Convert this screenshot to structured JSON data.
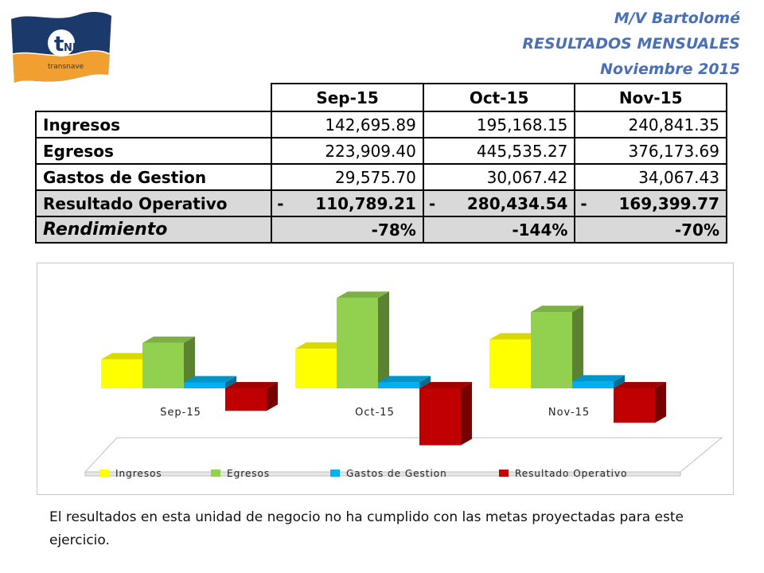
{
  "header": {
    "line1": "M/V Bartolomé",
    "line2": "RESULTADOS MENSUALES",
    "line3": "Noviembre 2015"
  },
  "logo": {
    "brand": "tne",
    "caption": "transnave",
    "colors": {
      "navy": "#1b3a6b",
      "orange": "#f0a030"
    }
  },
  "table": {
    "columns": [
      "Sep-15",
      "Oct-15",
      "Nov-15"
    ],
    "rows": [
      {
        "label": "Ingresos",
        "values": [
          "142,695.89",
          "195,168.15",
          "240,841.35"
        ]
      },
      {
        "label": "Egresos",
        "values": [
          "223,909.40",
          "445,535.27",
          "376,173.69"
        ]
      },
      {
        "label": "Gastos de Gestion",
        "values": [
          "29,575.70",
          "30,067.42",
          "34,067.43"
        ]
      },
      {
        "label": "Resultado Operativo",
        "sign": "-",
        "values": [
          "110,789.21",
          "280,434.54",
          "169,399.77"
        ]
      },
      {
        "label": "Rendimiento",
        "values": [
          "-78%",
          "-144%",
          "-70%"
        ]
      }
    ]
  },
  "chart_data": {
    "type": "bar",
    "categories": [
      "Sep-15",
      "Oct-15",
      "Nov-15"
    ],
    "series": [
      {
        "name": "Ingresos",
        "color": "#ffff00",
        "values": [
          142695.89,
          195168.15,
          240841.35
        ]
      },
      {
        "name": "Egresos",
        "color": "#92d050",
        "values": [
          223909.4,
          445535.27,
          376173.69
        ]
      },
      {
        "name": "Gastos de Gestion",
        "color": "#00b0f0",
        "values": [
          29575.7,
          30067.42,
          34067.43
        ]
      },
      {
        "name": "Resultado Operativo",
        "color": "#c00000",
        "values": [
          -110789.21,
          -280434.54,
          -169399.77
        ]
      }
    ],
    "title": "",
    "xlabel": "",
    "ylabel": "",
    "ylim": [
      -300000,
      500000
    ],
    "grid": false,
    "legend": "bottom",
    "style": "3d-clustered-column"
  },
  "note": "El resultados en esta unidad de negocio no ha cumplido con las metas proyectadas para este ejercicio."
}
